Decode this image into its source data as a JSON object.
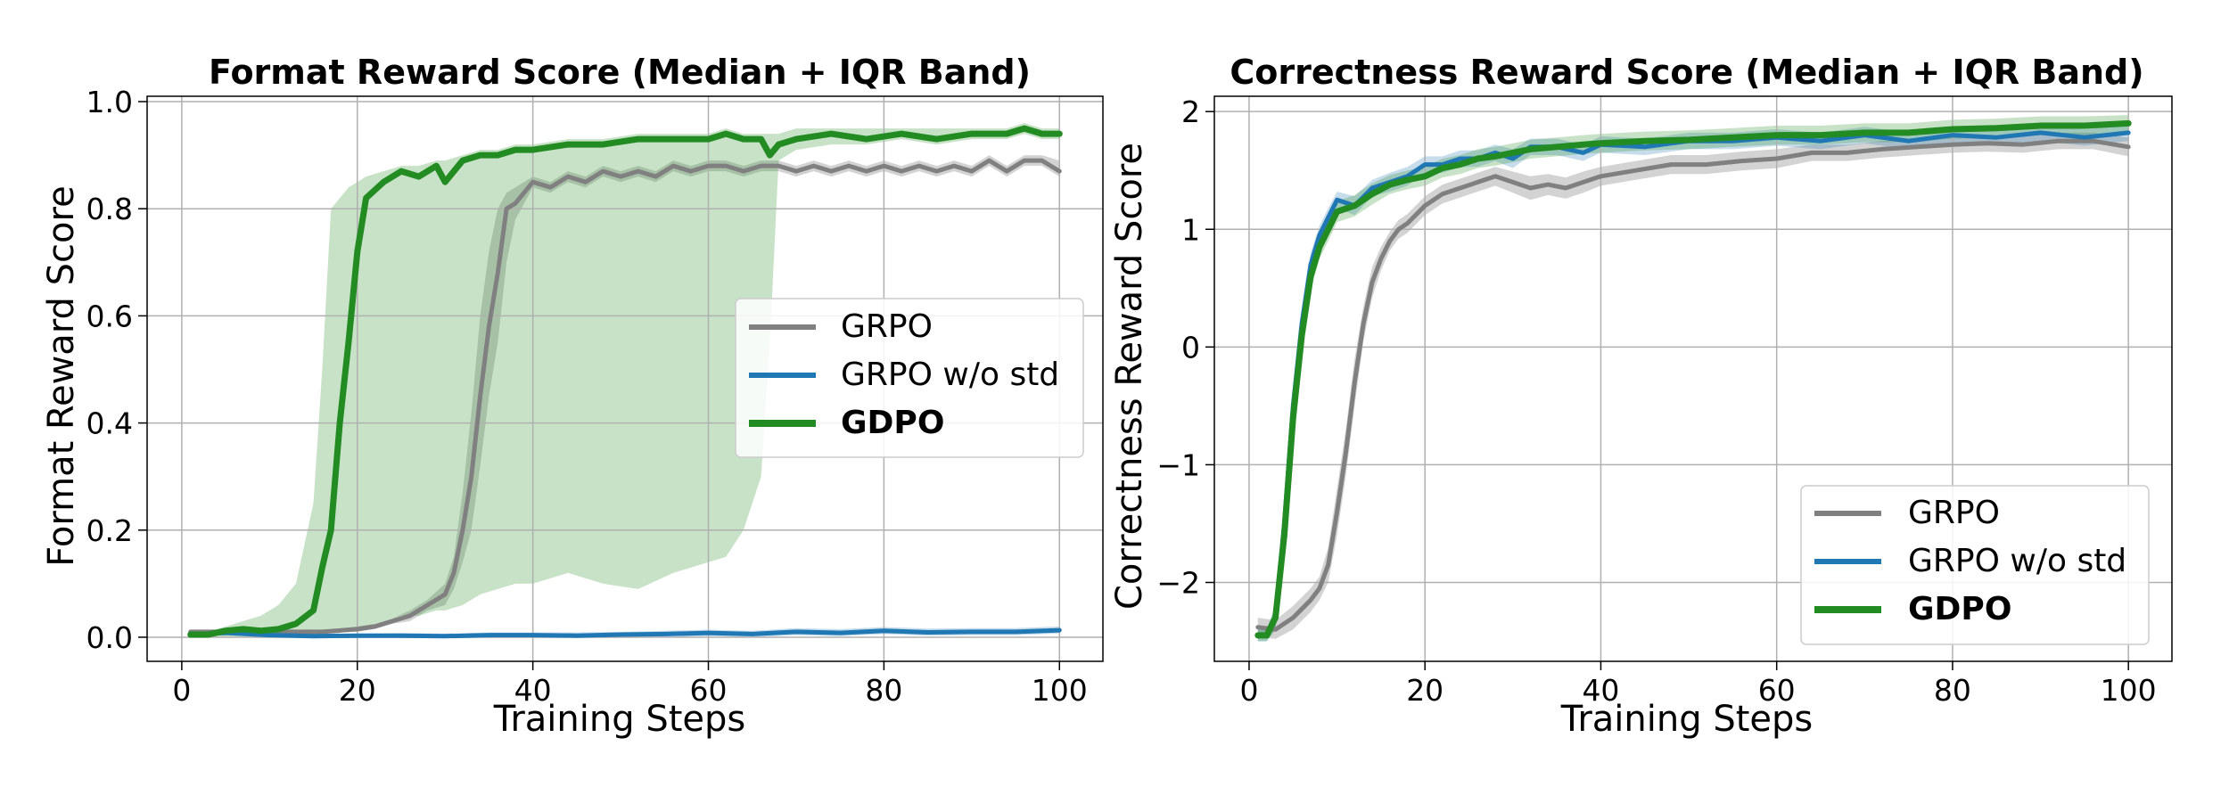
{
  "chart_data": [
    {
      "type": "line",
      "title": "Format Reward Score (Median + IQR Band)",
      "xlabel": "Training Steps",
      "ylabel": "Format Reward Score",
      "xlim": [
        -3.95,
        104.95
      ],
      "ylim": [
        -0.045,
        1.01
      ],
      "xticks": [
        0,
        20,
        40,
        60,
        80,
        100
      ],
      "xtick_labels": [
        "0",
        "20",
        "40",
        "60",
        "80",
        "100"
      ],
      "yticks": [
        0.0,
        0.2,
        0.4,
        0.6,
        0.8,
        1.0
      ],
      "ytick_labels": [
        "0.0",
        "0.2",
        "0.4",
        "0.6",
        "0.8",
        "1.0"
      ],
      "grid": true,
      "legend_position": "center-right",
      "series": [
        {
          "name": "GRPO",
          "color": "#808080",
          "bold": false,
          "x": [
            1,
            4,
            8,
            12,
            16,
            20,
            22,
            24,
            26,
            28,
            30,
            31,
            32,
            33,
            34,
            35,
            36,
            37,
            38,
            39,
            40,
            42,
            44,
            46,
            48,
            50,
            52,
            54,
            56,
            58,
            60,
            62,
            64,
            66,
            68,
            70,
            72,
            74,
            76,
            78,
            80,
            82,
            84,
            86,
            88,
            90,
            92,
            94,
            96,
            98,
            100
          ],
          "y": [
            0.01,
            0.01,
            0.01,
            0.01,
            0.01,
            0.015,
            0.02,
            0.03,
            0.04,
            0.06,
            0.08,
            0.12,
            0.2,
            0.3,
            0.45,
            0.58,
            0.68,
            0.8,
            0.81,
            0.83,
            0.85,
            0.84,
            0.86,
            0.85,
            0.87,
            0.86,
            0.87,
            0.86,
            0.88,
            0.87,
            0.88,
            0.88,
            0.87,
            0.88,
            0.88,
            0.87,
            0.88,
            0.87,
            0.88,
            0.87,
            0.88,
            0.87,
            0.88,
            0.87,
            0.88,
            0.87,
            0.89,
            0.87,
            0.89,
            0.89,
            0.87
          ],
          "band_upper": [
            0.012,
            0.012,
            0.012,
            0.012,
            0.012,
            0.02,
            0.025,
            0.035,
            0.05,
            0.07,
            0.1,
            0.15,
            0.27,
            0.42,
            0.6,
            0.72,
            0.8,
            0.83,
            0.84,
            0.85,
            0.86,
            0.85,
            0.87,
            0.86,
            0.88,
            0.87,
            0.88,
            0.87,
            0.89,
            0.88,
            0.89,
            0.89,
            0.88,
            0.89,
            0.89,
            0.88,
            0.89,
            0.88,
            0.89,
            0.88,
            0.89,
            0.88,
            0.89,
            0.88,
            0.89,
            0.88,
            0.9,
            0.88,
            0.9,
            0.9,
            0.89
          ],
          "band_lower": [
            0.008,
            0.008,
            0.008,
            0.008,
            0.008,
            0.01,
            0.015,
            0.025,
            0.03,
            0.05,
            0.06,
            0.09,
            0.14,
            0.2,
            0.32,
            0.45,
            0.55,
            0.7,
            0.78,
            0.81,
            0.84,
            0.83,
            0.85,
            0.84,
            0.86,
            0.85,
            0.86,
            0.85,
            0.87,
            0.86,
            0.87,
            0.87,
            0.86,
            0.87,
            0.87,
            0.86,
            0.87,
            0.86,
            0.87,
            0.86,
            0.87,
            0.86,
            0.87,
            0.86,
            0.87,
            0.86,
            0.88,
            0.86,
            0.88,
            0.88,
            0.86
          ]
        },
        {
          "name": "GRPO w/o std",
          "color": "#1f77b4",
          "bold": false,
          "x": [
            1,
            5,
            10,
            15,
            20,
            25,
            30,
            35,
            40,
            45,
            50,
            55,
            60,
            65,
            70,
            75,
            80,
            85,
            90,
            95,
            100
          ],
          "y": [
            0.005,
            0.008,
            0.004,
            0.002,
            0.003,
            0.003,
            0.002,
            0.004,
            0.004,
            0.003,
            0.005,
            0.006,
            0.008,
            0.006,
            0.01,
            0.008,
            0.012,
            0.009,
            0.01,
            0.01,
            0.013
          ],
          "band_upper": [
            0.008,
            0.012,
            0.008,
            0.006,
            0.007,
            0.008,
            0.007,
            0.009,
            0.009,
            0.009,
            0.01,
            0.012,
            0.014,
            0.012,
            0.017,
            0.015,
            0.019,
            0.016,
            0.017,
            0.017,
            0.02
          ],
          "band_lower": [
            0.002,
            0.004,
            0.0,
            0.0,
            0.0,
            0.0,
            0.0,
            0.0,
            0.0,
            0.0,
            0.0,
            0.0,
            0.002,
            0.0,
            0.004,
            0.002,
            0.006,
            0.003,
            0.004,
            0.004,
            0.007
          ]
        },
        {
          "name": "GDPO",
          "color": "#228b22",
          "bold": true,
          "x": [
            1,
            3,
            5,
            7,
            9,
            11,
            13,
            15,
            16,
            17,
            18,
            19,
            20,
            21,
            23,
            25,
            27,
            29,
            30,
            32,
            34,
            36,
            38,
            40,
            44,
            48,
            52,
            56,
            60,
            62,
            64,
            66,
            67,
            68,
            70,
            74,
            78,
            82,
            86,
            90,
            94,
            96,
            98,
            100
          ],
          "y": [
            0.005,
            0.005,
            0.012,
            0.015,
            0.012,
            0.015,
            0.025,
            0.05,
            0.13,
            0.2,
            0.4,
            0.55,
            0.72,
            0.82,
            0.85,
            0.87,
            0.86,
            0.88,
            0.85,
            0.89,
            0.9,
            0.9,
            0.91,
            0.91,
            0.92,
            0.92,
            0.93,
            0.93,
            0.93,
            0.94,
            0.93,
            0.93,
            0.9,
            0.92,
            0.93,
            0.94,
            0.93,
            0.94,
            0.93,
            0.94,
            0.94,
            0.95,
            0.94,
            0.94
          ],
          "band_upper": [
            0.01,
            0.01,
            0.02,
            0.03,
            0.04,
            0.06,
            0.1,
            0.25,
            0.5,
            0.8,
            0.82,
            0.84,
            0.85,
            0.86,
            0.87,
            0.88,
            0.88,
            0.89,
            0.89,
            0.9,
            0.91,
            0.91,
            0.92,
            0.92,
            0.93,
            0.93,
            0.94,
            0.94,
            0.94,
            0.95,
            0.94,
            0.94,
            0.94,
            0.94,
            0.95,
            0.95,
            0.95,
            0.95,
            0.95,
            0.95,
            0.95,
            0.96,
            0.95,
            0.95
          ],
          "band_lower": [
            0.0,
            0.0,
            0.0,
            0.0,
            0.0,
            0.0,
            0.0,
            0.0,
            0.005,
            0.01,
            0.01,
            0.01,
            0.015,
            0.02,
            0.03,
            0.04,
            0.04,
            0.05,
            0.05,
            0.06,
            0.08,
            0.09,
            0.1,
            0.1,
            0.12,
            0.1,
            0.09,
            0.12,
            0.14,
            0.15,
            0.2,
            0.3,
            0.55,
            0.89,
            0.91,
            0.92,
            0.92,
            0.93,
            0.92,
            0.93,
            0.93,
            0.94,
            0.93,
            0.93
          ]
        }
      ]
    },
    {
      "type": "line",
      "title": "Correctness Reward Score (Median + IQR Band)",
      "xlabel": "Training Steps",
      "ylabel": "Correctness Reward Score",
      "xlim": [
        -3.95,
        104.95
      ],
      "ylim": [
        -2.67,
        2.13
      ],
      "xticks": [
        0,
        20,
        40,
        60,
        80,
        100
      ],
      "xtick_labels": [
        "0",
        "20",
        "40",
        "60",
        "80",
        "100"
      ],
      "yticks": [
        -2,
        -1,
        0,
        1,
        2
      ],
      "ytick_labels": [
        "−2",
        "−1",
        "0",
        "1",
        "2"
      ],
      "grid": true,
      "legend_position": "lower-right",
      "series": [
        {
          "name": "GRPO",
          "color": "#808080",
          "bold": false,
          "x": [
            1,
            3,
            5,
            7,
            8,
            9,
            10,
            11,
            12,
            13,
            14,
            15,
            16,
            17,
            18,
            20,
            22,
            24,
            26,
            28,
            30,
            32,
            34,
            36,
            38,
            40,
            44,
            48,
            52,
            56,
            60,
            64,
            68,
            72,
            76,
            80,
            84,
            88,
            92,
            96,
            100
          ],
          "y": [
            -2.38,
            -2.4,
            -2.3,
            -2.15,
            -2.05,
            -1.85,
            -1.4,
            -0.9,
            -0.3,
            0.2,
            0.55,
            0.75,
            0.9,
            1.0,
            1.05,
            1.2,
            1.3,
            1.35,
            1.4,
            1.45,
            1.4,
            1.35,
            1.38,
            1.35,
            1.4,
            1.45,
            1.5,
            1.55,
            1.55,
            1.58,
            1.6,
            1.65,
            1.65,
            1.68,
            1.7,
            1.72,
            1.73,
            1.72,
            1.75,
            1.75,
            1.7
          ],
          "band_upper": [
            -2.3,
            -2.32,
            -2.2,
            -2.05,
            -1.95,
            -1.7,
            -1.2,
            -0.7,
            -0.1,
            0.35,
            0.68,
            0.85,
            0.98,
            1.08,
            1.13,
            1.28,
            1.38,
            1.43,
            1.48,
            1.53,
            1.49,
            1.45,
            1.47,
            1.44,
            1.49,
            1.53,
            1.58,
            1.63,
            1.63,
            1.66,
            1.68,
            1.72,
            1.72,
            1.75,
            1.77,
            1.79,
            1.8,
            1.79,
            1.82,
            1.82,
            1.78
          ],
          "band_lower": [
            -2.46,
            -2.48,
            -2.4,
            -2.25,
            -2.15,
            -2.0,
            -1.6,
            -1.1,
            -0.5,
            0.05,
            0.42,
            0.65,
            0.82,
            0.92,
            0.97,
            1.12,
            1.22,
            1.27,
            1.32,
            1.37,
            1.31,
            1.25,
            1.29,
            1.26,
            1.31,
            1.37,
            1.42,
            1.47,
            1.47,
            1.5,
            1.52,
            1.58,
            1.58,
            1.61,
            1.63,
            1.65,
            1.66,
            1.65,
            1.68,
            1.68,
            1.62
          ]
        },
        {
          "name": "GRPO w/o std",
          "color": "#1f77b4",
          "bold": false,
          "x": [
            1,
            2,
            3,
            4,
            5,
            6,
            7,
            8,
            9,
            10,
            12,
            14,
            16,
            18,
            20,
            22,
            24,
            26,
            28,
            30,
            32,
            35,
            38,
            40,
            45,
            50,
            55,
            60,
            65,
            70,
            75,
            80,
            85,
            90,
            95,
            100
          ],
          "y": [
            -2.45,
            -2.45,
            -2.3,
            -1.5,
            -0.5,
            0.2,
            0.7,
            0.95,
            1.1,
            1.25,
            1.2,
            1.35,
            1.4,
            1.45,
            1.55,
            1.55,
            1.6,
            1.6,
            1.65,
            1.6,
            1.7,
            1.7,
            1.65,
            1.72,
            1.7,
            1.75,
            1.75,
            1.78,
            1.75,
            1.8,
            1.75,
            1.8,
            1.78,
            1.82,
            1.78,
            1.82
          ],
          "band_upper": [
            -2.4,
            -2.4,
            -2.2,
            -1.35,
            -0.35,
            0.32,
            0.8,
            1.03,
            1.18,
            1.32,
            1.28,
            1.42,
            1.48,
            1.53,
            1.62,
            1.62,
            1.67,
            1.67,
            1.72,
            1.68,
            1.77,
            1.77,
            1.72,
            1.79,
            1.77,
            1.82,
            1.82,
            1.85,
            1.82,
            1.87,
            1.82,
            1.87,
            1.85,
            1.89,
            1.85,
            1.89
          ],
          "band_lower": [
            -2.5,
            -2.5,
            -2.4,
            -1.65,
            -0.65,
            0.08,
            0.6,
            0.87,
            1.02,
            1.18,
            1.12,
            1.28,
            1.32,
            1.37,
            1.48,
            1.48,
            1.53,
            1.53,
            1.58,
            1.52,
            1.63,
            1.63,
            1.58,
            1.65,
            1.63,
            1.68,
            1.68,
            1.71,
            1.68,
            1.73,
            1.68,
            1.73,
            1.71,
            1.75,
            1.71,
            1.75
          ]
        },
        {
          "name": "GDPO",
          "color": "#228b22",
          "bold": true,
          "x": [
            1,
            2,
            3,
            4,
            5,
            6,
            7,
            8,
            9,
            10,
            12,
            14,
            16,
            18,
            20,
            22,
            24,
            26,
            28,
            30,
            32,
            35,
            38,
            40,
            45,
            50,
            55,
            60,
            65,
            70,
            75,
            80,
            85,
            90,
            95,
            100
          ],
          "y": [
            -2.45,
            -2.45,
            -2.3,
            -1.6,
            -0.6,
            0.1,
            0.6,
            0.85,
            1.0,
            1.15,
            1.2,
            1.3,
            1.38,
            1.42,
            1.45,
            1.52,
            1.55,
            1.6,
            1.62,
            1.65,
            1.68,
            1.7,
            1.72,
            1.73,
            1.75,
            1.76,
            1.78,
            1.8,
            1.8,
            1.82,
            1.82,
            1.85,
            1.86,
            1.88,
            1.88,
            1.9
          ],
          "band_upper": [
            -2.4,
            -2.4,
            -2.2,
            -1.45,
            -0.45,
            0.25,
            0.72,
            0.95,
            1.1,
            1.24,
            1.29,
            1.39,
            1.46,
            1.5,
            1.53,
            1.6,
            1.63,
            1.68,
            1.7,
            1.73,
            1.76,
            1.78,
            1.8,
            1.81,
            1.83,
            1.84,
            1.86,
            1.88,
            1.88,
            1.9,
            1.9,
            1.93,
            1.94,
            1.96,
            1.96,
            1.97
          ],
          "band_lower": [
            -2.5,
            -2.5,
            -2.4,
            -1.75,
            -0.75,
            -0.05,
            0.48,
            0.75,
            0.9,
            1.06,
            1.11,
            1.21,
            1.3,
            1.34,
            1.37,
            1.44,
            1.47,
            1.52,
            1.54,
            1.57,
            1.6,
            1.62,
            1.64,
            1.65,
            1.67,
            1.68,
            1.7,
            1.72,
            1.72,
            1.74,
            1.74,
            1.77,
            1.78,
            1.8,
            1.8,
            1.83
          ]
        }
      ]
    }
  ]
}
